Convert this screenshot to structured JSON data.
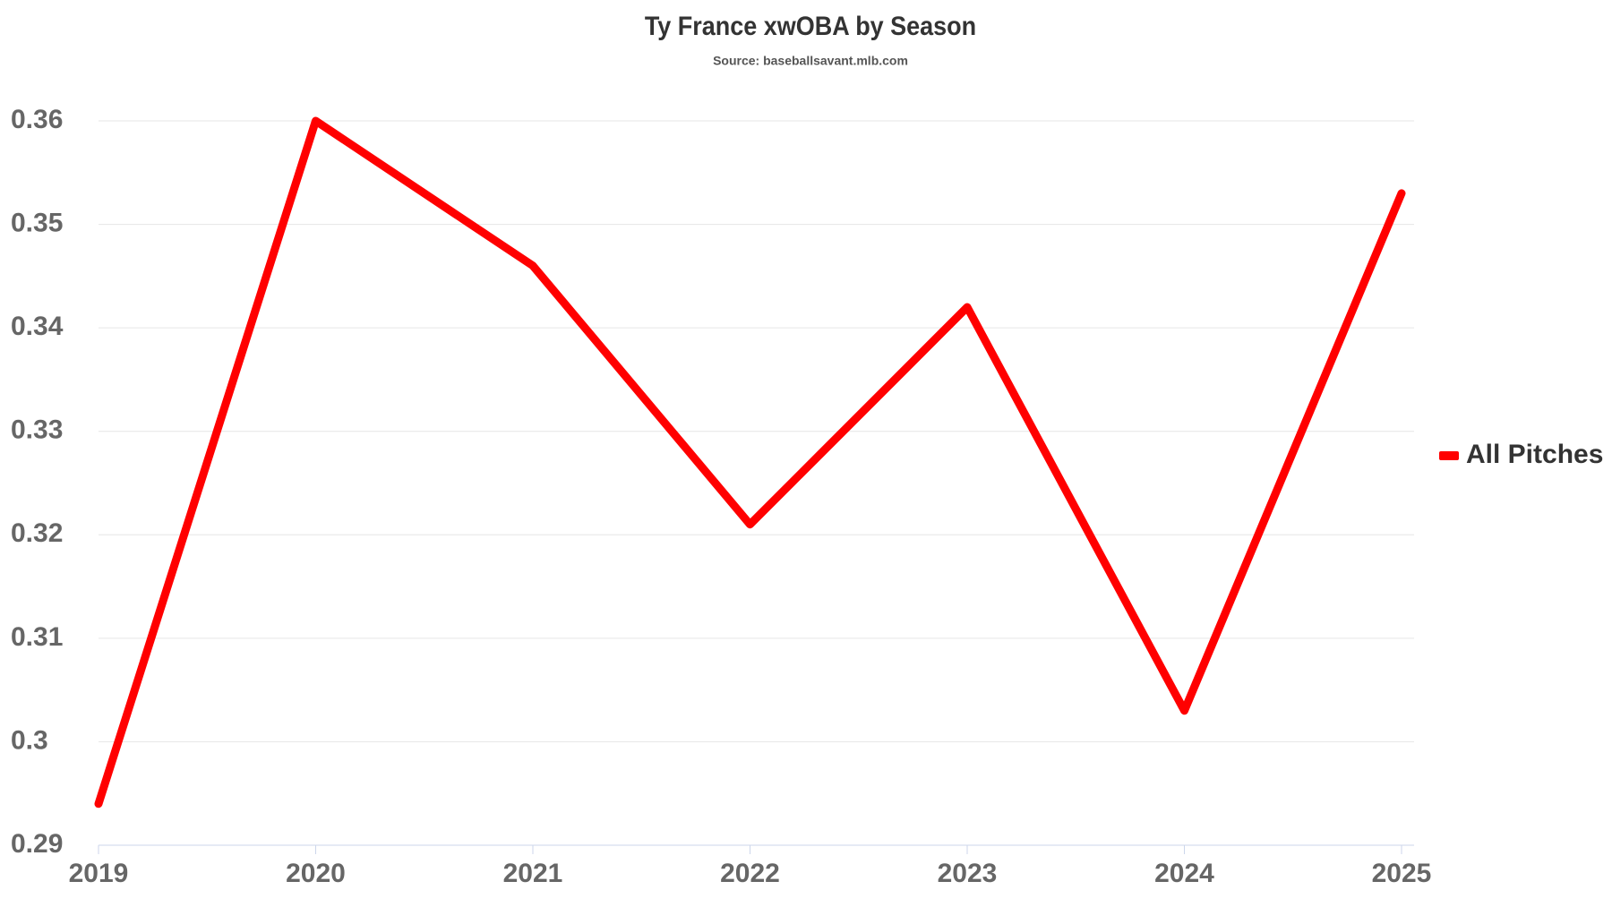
{
  "chart_data": {
    "type": "line",
    "title": "Ty France xwOBA by Season",
    "subtitle": "Source: baseballsavant.mlb.com",
    "categories": [
      "2019",
      "2020",
      "2021",
      "2022",
      "2023",
      "2024",
      "2025"
    ],
    "series": [
      {
        "name": "All Pitches",
        "color": "#ff0000",
        "values": [
          0.294,
          0.36,
          0.346,
          0.321,
          0.342,
          0.303,
          0.353
        ]
      }
    ],
    "ylim": [
      0.29,
      0.36
    ],
    "yticks": [
      0.29,
      0.3,
      0.31,
      0.32,
      0.33,
      0.34,
      0.35,
      0.36
    ],
    "grid": true,
    "legend": "right"
  }
}
